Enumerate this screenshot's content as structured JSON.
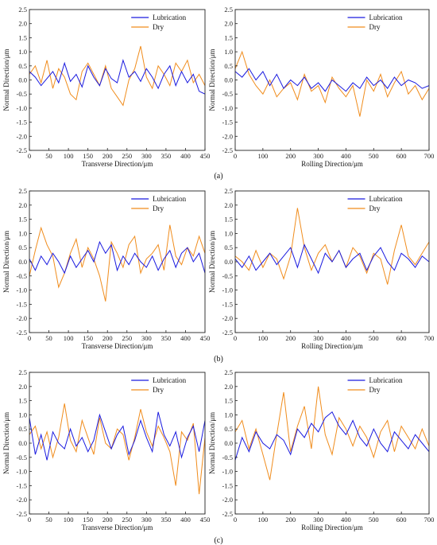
{
  "colors": {
    "lubrication": "#1a1adf",
    "dry": "#f08c1c",
    "axis": "#222222"
  },
  "chart_data": [
    {
      "type": "line",
      "panel": "a",
      "xlabel": "Transverse Direction/μm",
      "ylabel": "Normal Direction/μm",
      "xlim": [
        0,
        450
      ],
      "ylim": [
        -2.5,
        2.5
      ],
      "xticks": [
        0,
        50,
        100,
        150,
        200,
        250,
        300,
        350,
        400,
        450
      ],
      "yticks": [
        -2.5,
        -2.0,
        -1.5,
        -1.0,
        -0.5,
        0.0,
        0.5,
        1.0,
        1.5,
        2.0,
        2.5
      ],
      "legend": "top-center",
      "series": [
        {
          "name": "Lubrication",
          "color": "#1a1adf",
          "x": [
            0,
            15,
            30,
            45,
            60,
            75,
            90,
            105,
            120,
            135,
            150,
            165,
            180,
            195,
            210,
            225,
            240,
            255,
            270,
            285,
            300,
            315,
            330,
            345,
            360,
            375,
            390,
            405,
            420,
            435,
            450
          ],
          "y": [
            0.3,
            0.1,
            -0.2,
            0.05,
            0.3,
            -0.1,
            0.6,
            -0.05,
            0.2,
            -0.25,
            0.5,
            0.1,
            -0.2,
            0.4,
            0.05,
            -0.1,
            0.7,
            0.1,
            0.3,
            -0.05,
            0.4,
            0.1,
            -0.3,
            0.2,
            0.5,
            -0.2,
            0.3,
            -0.1,
            0.2,
            -0.4,
            -0.5
          ]
        },
        {
          "name": "Dry",
          "color": "#f08c1c",
          "x": [
            0,
            15,
            30,
            45,
            60,
            75,
            90,
            105,
            120,
            135,
            150,
            165,
            180,
            195,
            210,
            225,
            240,
            255,
            270,
            285,
            300,
            315,
            330,
            345,
            360,
            375,
            390,
            405,
            420,
            435,
            450
          ],
          "y": [
            0.2,
            0.5,
            -0.1,
            0.7,
            -0.3,
            0.4,
            0.1,
            -0.5,
            -0.7,
            0.3,
            0.6,
            0.2,
            -0.2,
            0.5,
            -0.3,
            -0.6,
            -0.9,
            0.0,
            0.4,
            1.2,
            0.1,
            -0.3,
            0.5,
            0.2,
            -0.2,
            0.6,
            0.3,
            0.7,
            -0.1,
            0.2,
            -0.2
          ]
        }
      ]
    },
    {
      "type": "line",
      "panel": "a",
      "xlabel": "Rolling Direction/μm",
      "ylabel": "Normal Direction/μm",
      "xlim": [
        0,
        700
      ],
      "ylim": [
        -2.5,
        2.5
      ],
      "xticks": [
        0,
        100,
        200,
        300,
        400,
        500,
        600,
        700
      ],
      "yticks": [
        -2.5,
        -2.0,
        -1.5,
        -1.0,
        -0.5,
        0.0,
        0.5,
        1.0,
        1.5,
        2.0,
        2.5
      ],
      "legend": "top-center",
      "series": [
        {
          "name": "Lubrication",
          "color": "#1a1adf",
          "x": [
            0,
            25,
            50,
            75,
            100,
            125,
            150,
            175,
            200,
            225,
            250,
            275,
            300,
            325,
            350,
            375,
            400,
            425,
            450,
            475,
            500,
            525,
            550,
            575,
            600,
            625,
            650,
            675,
            700
          ],
          "y": [
            0.3,
            0.1,
            0.4,
            0.0,
            0.3,
            -0.2,
            0.2,
            -0.3,
            0.0,
            -0.2,
            0.1,
            -0.3,
            -0.1,
            -0.4,
            0.0,
            -0.2,
            -0.4,
            -0.1,
            -0.3,
            0.1,
            -0.2,
            0.0,
            -0.3,
            0.1,
            -0.2,
            0.0,
            -0.1,
            -0.3,
            -0.2
          ]
        },
        {
          "name": "Dry",
          "color": "#f08c1c",
          "x": [
            0,
            25,
            50,
            75,
            100,
            125,
            150,
            175,
            200,
            225,
            250,
            275,
            300,
            325,
            350,
            375,
            400,
            425,
            450,
            475,
            500,
            525,
            550,
            575,
            600,
            625,
            650,
            675,
            700
          ],
          "y": [
            0.4,
            1.0,
            0.2,
            -0.2,
            -0.5,
            0.0,
            -0.6,
            -0.3,
            -0.1,
            -0.7,
            0.2,
            -0.4,
            -0.2,
            -0.8,
            0.1,
            -0.3,
            -0.6,
            -0.2,
            -1.3,
            0.0,
            -0.4,
            0.2,
            -0.6,
            -0.1,
            0.3,
            -0.5,
            -0.2,
            -0.7,
            -0.3
          ]
        }
      ]
    },
    {
      "type": "line",
      "panel": "b",
      "xlabel": "Transverse Direction/μm",
      "ylabel": "Normal Direction/μm",
      "xlim": [
        0,
        450
      ],
      "ylim": [
        -2.5,
        2.5
      ],
      "xticks": [
        0,
        50,
        100,
        150,
        200,
        250,
        300,
        350,
        400,
        450
      ],
      "yticks": [
        -2.5,
        -2.0,
        -1.5,
        -1.0,
        -0.5,
        0.0,
        0.5,
        1.0,
        1.5,
        2.0,
        2.5
      ],
      "legend": "top-center",
      "series": [
        {
          "name": "Lubrication",
          "color": "#1a1adf",
          "x": [
            0,
            15,
            30,
            45,
            60,
            75,
            90,
            105,
            120,
            135,
            150,
            165,
            180,
            195,
            210,
            225,
            240,
            255,
            270,
            285,
            300,
            315,
            330,
            345,
            360,
            375,
            390,
            405,
            420,
            435,
            450
          ],
          "y": [
            0.1,
            -0.3,
            0.2,
            -0.1,
            0.3,
            0.0,
            -0.4,
            0.2,
            -0.2,
            0.1,
            0.4,
            0.0,
            0.7,
            0.3,
            0.6,
            -0.3,
            0.2,
            -0.1,
            0.3,
            0.0,
            -0.2,
            0.2,
            -0.3,
            0.1,
            0.4,
            -0.2,
            0.3,
            0.5,
            0.0,
            0.3,
            -0.4
          ]
        },
        {
          "name": "Dry",
          "color": "#f08c1c",
          "x": [
            0,
            15,
            30,
            45,
            60,
            75,
            90,
            105,
            120,
            135,
            150,
            165,
            180,
            195,
            210,
            225,
            240,
            255,
            270,
            285,
            300,
            315,
            330,
            345,
            360,
            375,
            390,
            405,
            420,
            435,
            450
          ],
          "y": [
            -0.5,
            0.4,
            1.2,
            0.6,
            0.2,
            -0.9,
            -0.4,
            0.3,
            0.8,
            -0.2,
            0.5,
            0.1,
            -0.5,
            -1.4,
            0.7,
            0.3,
            -0.2,
            0.6,
            0.9,
            -0.4,
            0.1,
            0.3,
            0.6,
            -0.3,
            1.3,
            0.2,
            -0.1,
            0.5,
            0.2,
            0.9,
            0.3
          ]
        }
      ]
    },
    {
      "type": "line",
      "panel": "b",
      "xlabel": "Rolling Direction/μm",
      "ylabel": "Normal Direction/μm",
      "xlim": [
        0,
        700
      ],
      "ylim": [
        -2.5,
        2.5
      ],
      "xticks": [
        0,
        100,
        200,
        300,
        400,
        500,
        600,
        700
      ],
      "yticks": [
        -2.5,
        -2.0,
        -1.5,
        -1.0,
        -0.5,
        0.0,
        0.5,
        1.0,
        1.5,
        2.0,
        2.5
      ],
      "legend": "top-center",
      "series": [
        {
          "name": "Lubrication",
          "color": "#1a1adf",
          "x": [
            0,
            25,
            50,
            75,
            100,
            125,
            150,
            175,
            200,
            225,
            250,
            275,
            300,
            325,
            350,
            375,
            400,
            425,
            450,
            475,
            500,
            525,
            550,
            575,
            600,
            625,
            650,
            675,
            700
          ],
          "y": [
            0.1,
            -0.2,
            0.2,
            -0.3,
            0.0,
            0.3,
            -0.1,
            0.2,
            0.5,
            -0.2,
            0.6,
            0.1,
            -0.4,
            0.3,
            0.0,
            0.4,
            -0.2,
            0.1,
            0.3,
            -0.3,
            0.2,
            0.5,
            0.0,
            -0.3,
            0.3,
            0.1,
            -0.2,
            0.2,
            0.0
          ]
        },
        {
          "name": "Dry",
          "color": "#f08c1c",
          "x": [
            0,
            25,
            50,
            75,
            100,
            125,
            150,
            175,
            200,
            225,
            250,
            275,
            300,
            325,
            350,
            375,
            400,
            425,
            450,
            475,
            500,
            525,
            550,
            575,
            600,
            625,
            650,
            675,
            700
          ],
          "y": [
            0.2,
            0.0,
            -0.3,
            0.4,
            -0.2,
            0.3,
            0.1,
            -0.6,
            0.2,
            1.9,
            0.5,
            -0.3,
            0.3,
            0.6,
            0.0,
            0.4,
            -0.2,
            0.5,
            0.2,
            -0.4,
            0.3,
            0.1,
            -0.8,
            0.4,
            1.3,
            0.2,
            -0.1,
            0.3,
            0.7
          ]
        }
      ]
    },
    {
      "type": "line",
      "panel": "c",
      "xlabel": "Transverse Direction/μm",
      "ylabel": "Normal Direction/μm",
      "xlim": [
        0,
        450
      ],
      "ylim": [
        -2.5,
        2.5
      ],
      "xticks": [
        0,
        50,
        100,
        150,
        200,
        250,
        300,
        350,
        400,
        450
      ],
      "yticks": [
        -2.5,
        -2.0,
        -1.5,
        -1.0,
        -0.5,
        0.0,
        0.5,
        1.0,
        1.5,
        2.0,
        2.5
      ],
      "legend": "top-center",
      "series": [
        {
          "name": "Lubrication",
          "color": "#1a1adf",
          "x": [
            0,
            15,
            30,
            45,
            60,
            75,
            90,
            105,
            120,
            135,
            150,
            165,
            180,
            195,
            210,
            225,
            240,
            255,
            270,
            285,
            300,
            315,
            330,
            345,
            360,
            375,
            390,
            405,
            420,
            435,
            450
          ],
          "y": [
            0.9,
            -0.4,
            0.3,
            -0.6,
            0.4,
            0.0,
            -0.2,
            0.5,
            -0.1,
            0.2,
            -0.3,
            0.1,
            1.0,
            0.4,
            -0.2,
            0.3,
            0.6,
            -0.4,
            0.1,
            0.8,
            0.2,
            -0.3,
            1.1,
            0.3,
            -0.1,
            0.4,
            -0.5,
            0.2,
            0.6,
            -0.3,
            0.8
          ]
        },
        {
          "name": "Dry",
          "color": "#f08c1c",
          "x": [
            0,
            15,
            30,
            45,
            60,
            75,
            90,
            105,
            120,
            135,
            150,
            165,
            180,
            195,
            210,
            225,
            240,
            255,
            270,
            285,
            300,
            315,
            330,
            345,
            360,
            375,
            390,
            405,
            420,
            435,
            450
          ],
          "y": [
            0.3,
            0.6,
            -0.2,
            0.4,
            -0.5,
            0.2,
            1.4,
            0.1,
            -0.3,
            0.8,
            0.2,
            -0.4,
            0.9,
            0.0,
            -0.2,
            0.5,
            0.3,
            -0.6,
            0.2,
            1.2,
            0.4,
            -0.1,
            0.6,
            0.2,
            -0.3,
            -1.5,
            0.4,
            0.1,
            0.7,
            -1.8,
            0.2
          ]
        }
      ]
    },
    {
      "type": "line",
      "panel": "c",
      "xlabel": "Rolling Direction/μm",
      "ylabel": "Normal Direction/μm",
      "xlim": [
        0,
        700
      ],
      "ylim": [
        -2.5,
        2.5
      ],
      "xticks": [
        0,
        100,
        200,
        300,
        400,
        500,
        600,
        700
      ],
      "yticks": [
        -2.5,
        -2.0,
        -1.5,
        -1.0,
        -0.5,
        0.0,
        0.5,
        1.0,
        1.5,
        2.0,
        2.5
      ],
      "legend": "top-center",
      "series": [
        {
          "name": "Lubrication",
          "color": "#1a1adf",
          "x": [
            0,
            25,
            50,
            75,
            100,
            125,
            150,
            175,
            200,
            225,
            250,
            275,
            300,
            325,
            350,
            375,
            400,
            425,
            450,
            475,
            500,
            525,
            550,
            575,
            600,
            625,
            650,
            675,
            700
          ],
          "y": [
            -0.6,
            0.2,
            -0.3,
            0.4,
            0.0,
            -0.2,
            0.3,
            0.1,
            -0.4,
            0.5,
            0.2,
            0.7,
            0.4,
            0.9,
            1.1,
            0.6,
            0.3,
            0.8,
            0.2,
            -0.1,
            0.5,
            0.0,
            -0.3,
            0.4,
            0.1,
            -0.2,
            0.3,
            0.0,
            -0.3
          ]
        },
        {
          "name": "Dry",
          "color": "#f08c1c",
          "x": [
            0,
            25,
            50,
            75,
            100,
            125,
            150,
            175,
            200,
            225,
            250,
            275,
            300,
            325,
            350,
            375,
            400,
            425,
            450,
            475,
            500,
            525,
            550,
            575,
            600,
            625,
            650,
            675,
            700
          ],
          "y": [
            0.4,
            0.8,
            -0.2,
            0.5,
            -0.4,
            -1.3,
            0.3,
            1.8,
            -0.3,
            0.6,
            1.3,
            -0.2,
            2.0,
            0.3,
            -0.4,
            0.9,
            0.5,
            -0.1,
            0.6,
            0.2,
            -0.5,
            0.4,
            0.8,
            -0.3,
            0.6,
            0.2,
            -0.2,
            0.5,
            -0.1
          ]
        }
      ]
    }
  ],
  "panel_labels": [
    "(a)",
    "(b)",
    "(c)"
  ]
}
